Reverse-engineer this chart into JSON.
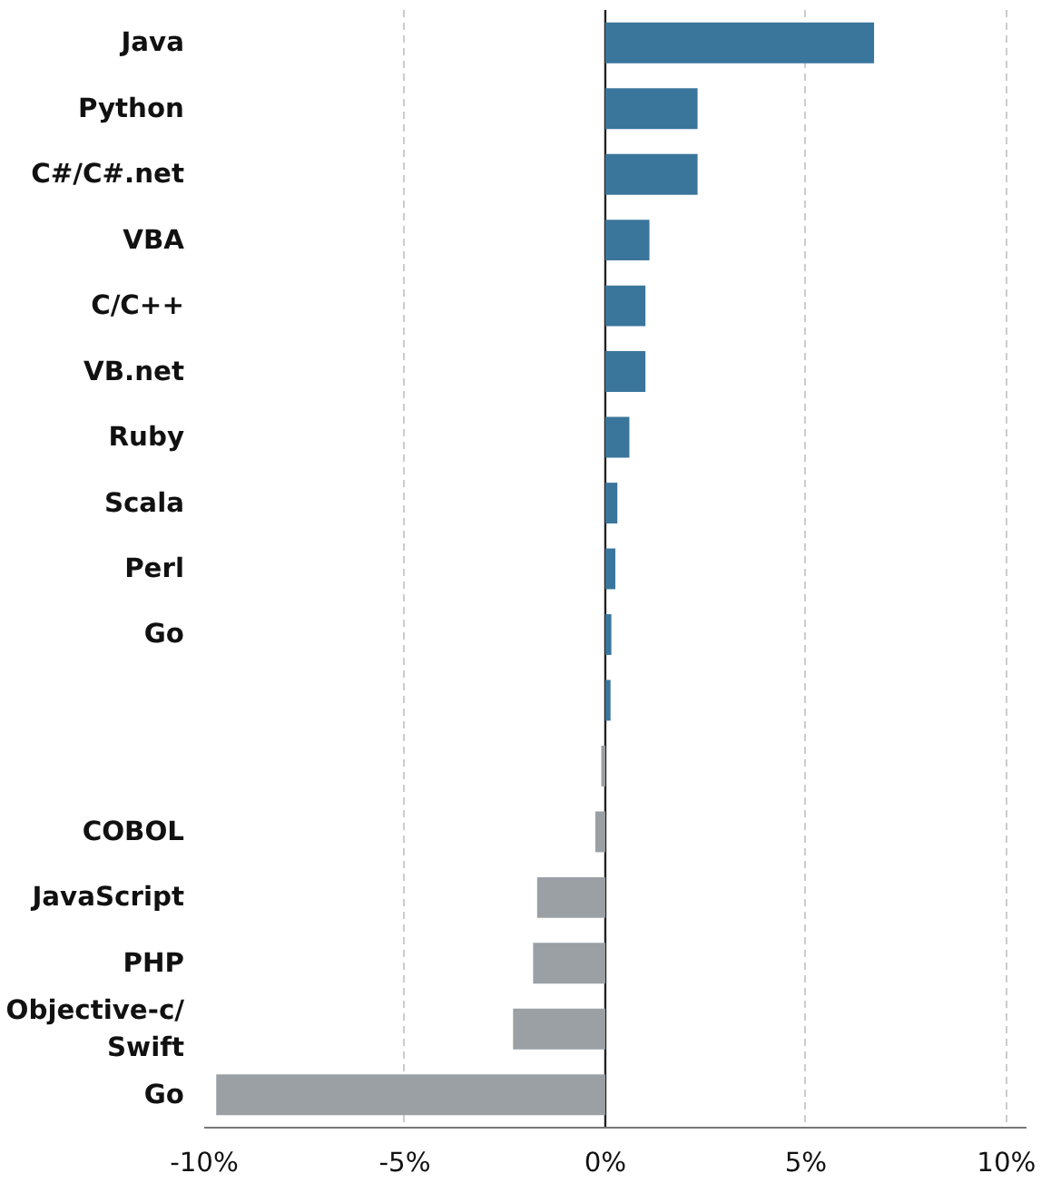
{
  "chart_data": {
    "type": "bar",
    "orientation": "horizontal",
    "categories": [
      "Java",
      "Python",
      "C#/C#.net",
      "VBA",
      "C/C++",
      "VB.net",
      "Ruby",
      "Scala",
      "Perl",
      "Go",
      null,
      null,
      "COBOL",
      "JavaScript",
      "PHP",
      "Objective-c/\nSwift",
      "Go"
    ],
    "values": [
      6.7,
      2.3,
      2.3,
      1.1,
      1.0,
      1.0,
      0.6,
      0.3,
      0.25,
      0.15,
      0.13,
      -0.1,
      -0.25,
      -1.7,
      -1.8,
      -2.3,
      -9.7
    ],
    "colors": [
      "#3a769c",
      "#3a769c",
      "#3a769c",
      "#3a769c",
      "#3a769c",
      "#3a769c",
      "#3a769c",
      "#3a769c",
      "#3a769c",
      "#3a769c",
      "#3a769c",
      "#9aa0a4",
      "#9aa0a4",
      "#9aa0a4",
      "#9aa0a4",
      "#9aa0a4",
      "#9aa0a4"
    ],
    "xlim": [
      -10,
      10.5
    ],
    "xticks": [
      {
        "value": -10,
        "label": "-10%"
      },
      {
        "value": -5,
        "label": "-5%"
      },
      {
        "value": 0,
        "label": "0%"
      },
      {
        "value": 5,
        "label": "5%"
      },
      {
        "value": 10,
        "label": "10%"
      }
    ],
    "ref_lines": [
      {
        "axis": "x",
        "value": 0,
        "color": "#222222"
      }
    ],
    "grid": "x"
  }
}
